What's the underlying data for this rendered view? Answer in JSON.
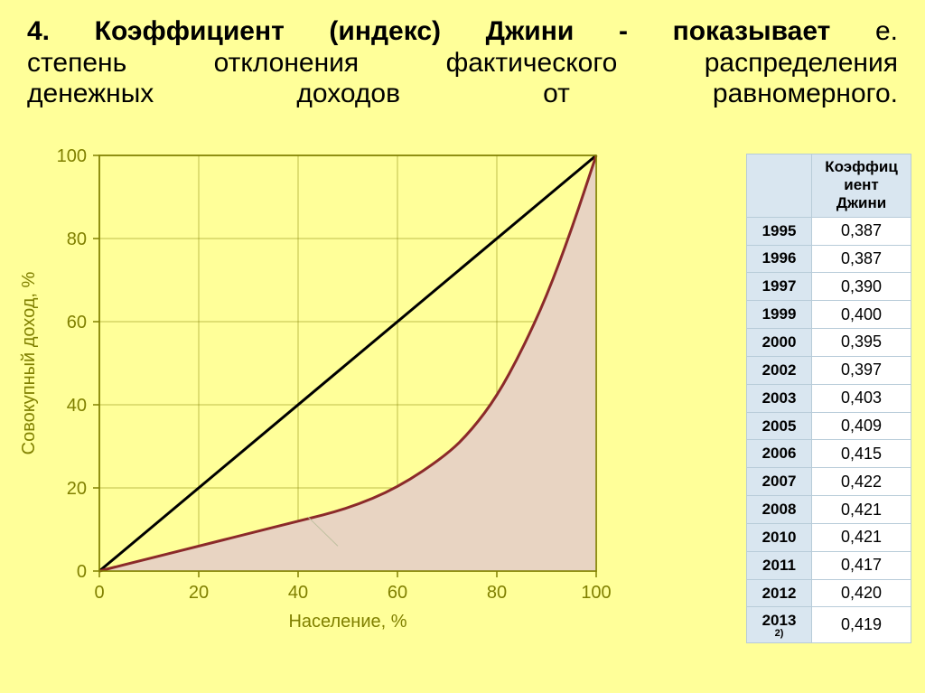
{
  "heading": {
    "line1_bold": "4. Коэффициент (индекс) Джини - показывает",
    "line1_tail": " е.",
    "line2": "степень отклонения фактического распределения",
    "line3": "денежных доходов от равномерного."
  },
  "chart": {
    "type": "line-area",
    "x_label": "Население, %",
    "y_label": "Совокупный доход, %",
    "xlim": [
      0,
      100
    ],
    "ylim": [
      0,
      100
    ],
    "x_ticks": [
      0,
      20,
      40,
      60,
      80,
      100
    ],
    "y_ticks": [
      0,
      20,
      40,
      60,
      80,
      100
    ],
    "plot_bg": "#ffff99",
    "area_fill": "#e8d4c2",
    "diag_color": "#000000",
    "diag_width": 3,
    "lorenz_color": "#8b2a2a",
    "lorenz_width": 3,
    "grid_color": "#808000",
    "grid_width": 1,
    "axis_color": "#808000",
    "tick_font_size": 20,
    "label_font_size": 20,
    "label_color": "#808000",
    "lorenz_points": [
      {
        "x": 0,
        "y": 0
      },
      {
        "x": 10,
        "y": 3
      },
      {
        "x": 20,
        "y": 6
      },
      {
        "x": 30,
        "y": 9
      },
      {
        "x": 40,
        "y": 12
      },
      {
        "x": 50,
        "y": 15
      },
      {
        "x": 60,
        "y": 20
      },
      {
        "x": 70,
        "y": 28
      },
      {
        "x": 75,
        "y": 34
      },
      {
        "x": 80,
        "y": 42
      },
      {
        "x": 85,
        "y": 53
      },
      {
        "x": 90,
        "y": 66
      },
      {
        "x": 95,
        "y": 82
      },
      {
        "x": 100,
        "y": 100
      }
    ],
    "diag_points": [
      {
        "x": 0,
        "y": 0
      },
      {
        "x": 100,
        "y": 100
      }
    ]
  },
  "table": {
    "header_blank": "",
    "header_value": "Коэффиц иент Джини",
    "rows": [
      {
        "year": "1995",
        "val": "0,387"
      },
      {
        "year": "1996",
        "val": "0,387"
      },
      {
        "year": "1997",
        "val": "0,390"
      },
      {
        "year": "1999",
        "val": "0,400"
      },
      {
        "year": "2000",
        "val": "0,395"
      },
      {
        "year": "2002",
        "val": "0,397"
      },
      {
        "year": "2003",
        "val": "0,403"
      },
      {
        "year": "2005",
        "val": "0,409"
      },
      {
        "year": "2006",
        "val": "0,415"
      },
      {
        "year": "2007",
        "val": "0,422"
      },
      {
        "year": "2008",
        "val": "0,421"
      },
      {
        "year": "2010",
        "val": "0,421"
      },
      {
        "year": "2011",
        "val": "0,417"
      },
      {
        "year": "2012",
        "val": "0,420"
      },
      {
        "year": "2013",
        "sup": "2)",
        "val": "0,419"
      }
    ]
  }
}
